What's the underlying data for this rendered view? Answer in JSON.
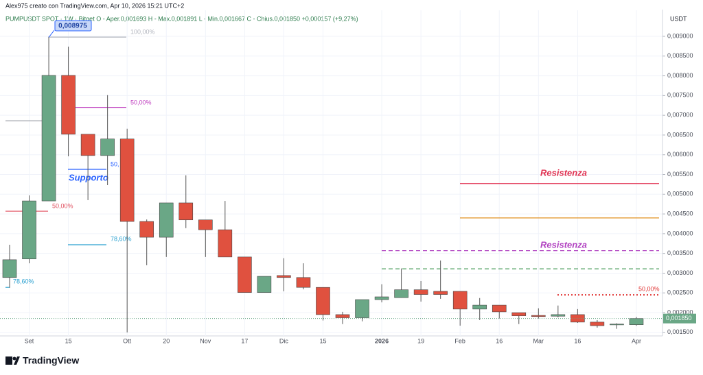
{
  "header": {
    "credit": "Alex975 creato con TradingView.com, Apr 10, 2026 15:21 UTC+2",
    "logo": "TradingView"
  },
  "chart_data": {
    "type": "candlestick",
    "symbol_line": "PUMPUSDT SPOT · 1W · Bitget  O - Aper.0,001693  H - Max.0,001891  L - Min.0,001667  C - Chius.0,001850  +0,000157 (+9,27%)",
    "y_axis_label": "USDT",
    "categories": [
      null,
      "Set",
      null,
      "15",
      null,
      null,
      "Ott",
      null,
      "20",
      null,
      "Nov",
      null,
      "17",
      null,
      "Dic",
      null,
      "15",
      null,
      null,
      "2026",
      null,
      "19",
      null,
      "Feb",
      null,
      "16",
      null,
      "Mar",
      null,
      "16",
      null,
      null,
      "Apr"
    ],
    "open": [
      0.00289,
      0.00336,
      0.00483,
      0.00801,
      0.00652,
      0.00598,
      0.0064,
      0.00431,
      0.00391,
      0.00478,
      0.00435,
      0.0041,
      0.00341,
      0.00251,
      0.00294,
      0.00289,
      0.00264,
      0.00195,
      0.00187,
      0.00233,
      0.00238,
      0.00258,
      0.00254,
      0.00254,
      0.00209,
      0.00219,
      0.002,
      0.00193,
      0.00191,
      0.00195,
      0.00176,
      0.00169,
      0.001693
    ],
    "high": [
      0.00372,
      0.00497,
      0.008975,
      0.00874,
      0.00652,
      0.00751,
      0.00666,
      0.00436,
      0.00478,
      0.00548,
      0.00435,
      0.00483,
      0.00341,
      0.00292,
      0.00338,
      0.00325,
      0.00264,
      0.00202,
      0.00233,
      0.00272,
      0.00312,
      0.0028,
      0.00332,
      0.00254,
      0.00237,
      0.00219,
      0.002,
      0.00211,
      0.00218,
      0.00209,
      0.00181,
      0.00173,
      0.001891
    ],
    "low": [
      0.00263,
      0.00325,
      0.00483,
      0.00596,
      0.00485,
      0.00523,
      0.0015,
      0.0032,
      0.00341,
      0.00414,
      0.00341,
      0.00341,
      0.00251,
      0.00251,
      0.00254,
      0.00259,
      0.0018,
      0.00171,
      0.00178,
      0.00226,
      0.00238,
      0.00228,
      0.00235,
      0.00167,
      0.00181,
      0.00185,
      0.00171,
      0.00185,
      0.00188,
      0.00174,
      0.00162,
      0.00159,
      0.001667
    ],
    "close": [
      0.00334,
      0.00483,
      0.00801,
      0.00652,
      0.00598,
      0.0064,
      0.00431,
      0.00391,
      0.00478,
      0.00435,
      0.0041,
      0.00341,
      0.00251,
      0.00292,
      0.00289,
      0.00264,
      0.00195,
      0.00187,
      0.00233,
      0.0024,
      0.00258,
      0.00246,
      0.00246,
      0.00209,
      0.00219,
      0.00202,
      0.00192,
      0.0019,
      0.00195,
      0.00176,
      0.00167,
      0.00171,
      0.00185
    ],
    "up_color": "#6aa786",
    "down_color": "#e0513f",
    "last_price": {
      "value": 0.00185,
      "label": "0,001850"
    },
    "ylim": [
      0.00141,
      0.00966
    ],
    "yticks": [
      {
        "value": 0.0015,
        "label": "0,001500"
      },
      {
        "value": 0.002,
        "label": "0,002000"
      },
      {
        "value": 0.0025,
        "label": "0,002500"
      },
      {
        "value": 0.003,
        "label": "0,003000"
      },
      {
        "value": 0.0035,
        "label": "0,003500"
      },
      {
        "value": 0.004,
        "label": "0,004000"
      },
      {
        "value": 0.0045,
        "label": "0,004500"
      },
      {
        "value": 0.005,
        "label": "0,005000"
      },
      {
        "value": 0.0055,
        "label": "0,005500"
      },
      {
        "value": 0.006,
        "label": "0,006000"
      },
      {
        "value": 0.0065,
        "label": "0,006500"
      },
      {
        "value": 0.007,
        "label": "0,007000"
      },
      {
        "value": 0.0075,
        "label": "0,007500"
      },
      {
        "value": 0.008,
        "label": "0,008000"
      },
      {
        "value": 0.0085,
        "label": "0,008500"
      },
      {
        "value": 0.009,
        "label": "0,009000"
      }
    ],
    "grid": true,
    "annotations": [
      {
        "label": "100,00%",
        "value": 0.00898,
        "color": "#b2b5be"
      },
      {
        "label": "50,00%",
        "value": 0.0072,
        "color": "#c040c0"
      },
      {
        "value": 0.00686,
        "color": "#9598a1"
      },
      {
        "label": "50,",
        "value": 0.00563,
        "color": "#2962ff"
      },
      {
        "label": "50,00%",
        "value": 0.00457,
        "color": "#e04c5c"
      },
      {
        "label": "78,60%",
        "value": 0.00372,
        "color": "#2aa0d0"
      },
      {
        "label": "78,60%",
        "value": 0.00264,
        "color": "#2aa0d0"
      },
      {
        "label": "Resistenza",
        "value": 0.00527,
        "color": "#e03050"
      },
      {
        "value": 0.0044,
        "color": "#e09020"
      },
      {
        "label": "Resistenza",
        "value": 0.00357,
        "color": "#b040c0",
        "style": "dashed"
      },
      {
        "value": 0.00311,
        "color": "#50a060",
        "style": "dashed"
      },
      {
        "label": "50,00%",
        "value": 0.00245,
        "color": "#e03030",
        "style": "dotted"
      },
      {
        "label": "Supporto",
        "color": "#2962ff"
      },
      {
        "label": "0,008975",
        "value": 0.008975,
        "color": "#2962ff",
        "style": "callout"
      }
    ]
  }
}
